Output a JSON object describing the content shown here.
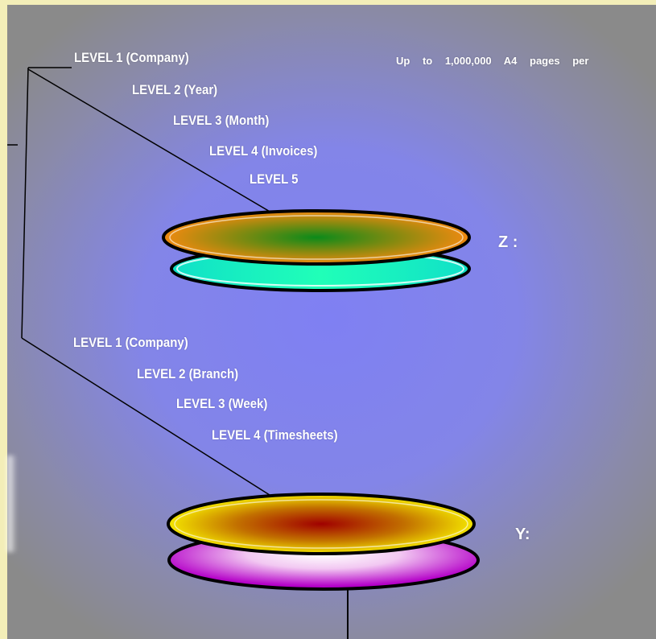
{
  "capacity_note": "Up to 1,000,000 A4 pages per",
  "z_stack": {
    "label": "Z :",
    "levels": [
      "LEVEL 1 (Company)",
      "LEVEL 2 (Year)",
      "LEVEL 3 (Month)",
      "LEVEL 4 (Invoices)",
      "LEVEL 5"
    ],
    "colors": {
      "top_center": "#0b8a1a",
      "top_edge": "#f08a10",
      "bottom": "#19f2c0"
    }
  },
  "y_stack": {
    "label": "Y:",
    "levels": [
      "LEVEL 1 (Company)",
      "LEVEL 2 (Branch)",
      "LEVEL 3 (Week)",
      "LEVEL 4 (Timesheets)"
    ],
    "colors": {
      "top_center": "#a00000",
      "top_edge": "#f4e600",
      "bottom": "#b400c8"
    }
  }
}
